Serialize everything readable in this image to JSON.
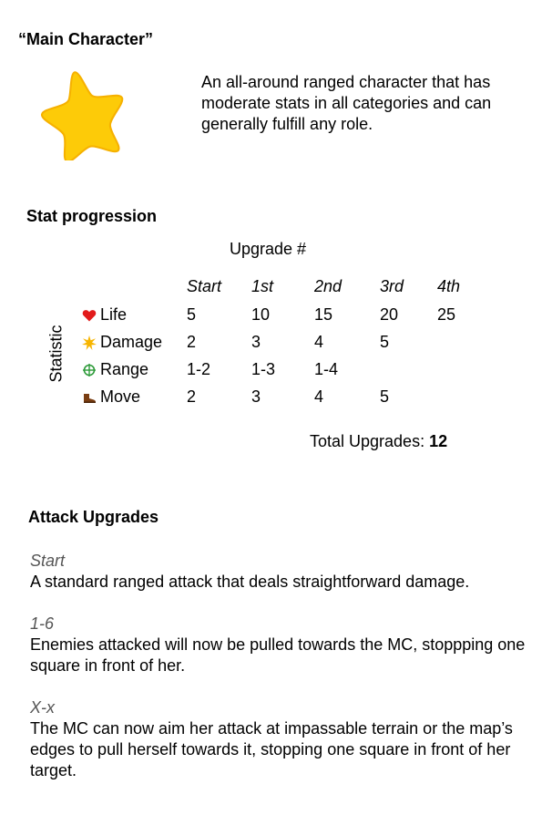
{
  "character": {
    "title": "“Main Character”",
    "description": "An all-around ranged character that has moderate stats in all categories and can generally fulfill any role.",
    "colors": {
      "star_fill": "#FDCB08",
      "star_stroke": "#F6B100"
    }
  },
  "stats": {
    "heading": "Stat progression",
    "upgrade_label": "Upgrade #",
    "axis_label": "Statistic",
    "columns": [
      "Start",
      "1st",
      "2nd",
      "3rd",
      "4th"
    ],
    "rows": [
      {
        "icon": "heart-icon",
        "label": "Life",
        "values": [
          "5",
          "10",
          "15",
          "20",
          "25"
        ]
      },
      {
        "icon": "burst-icon",
        "label": "Damage",
        "values": [
          "2",
          "3",
          "4",
          "5",
          ""
        ]
      },
      {
        "icon": "crosshair-icon",
        "label": "Range",
        "values": [
          "1-2",
          "1-3",
          "1-4",
          "",
          ""
        ]
      },
      {
        "icon": "boot-icon",
        "label": "Move",
        "values": [
          "2",
          "3",
          "4",
          "5",
          ""
        ]
      }
    ],
    "total_label": "Total Upgrades:",
    "total_value": "12"
  },
  "attack": {
    "heading": "Attack Upgrades",
    "upgrades": [
      {
        "tag": "Start",
        "text": "A standard ranged attack that deals straightforward damage."
      },
      {
        "tag": "1-6",
        "text": "Enemies attacked will now be pulled towards the MC, stoppping one square in front of her."
      },
      {
        "tag": "X-x",
        "text": "The MC can now aim her attack at impassable terrain or the map’s edges to pull herself towards it, stopping one square in front of her target."
      }
    ]
  }
}
